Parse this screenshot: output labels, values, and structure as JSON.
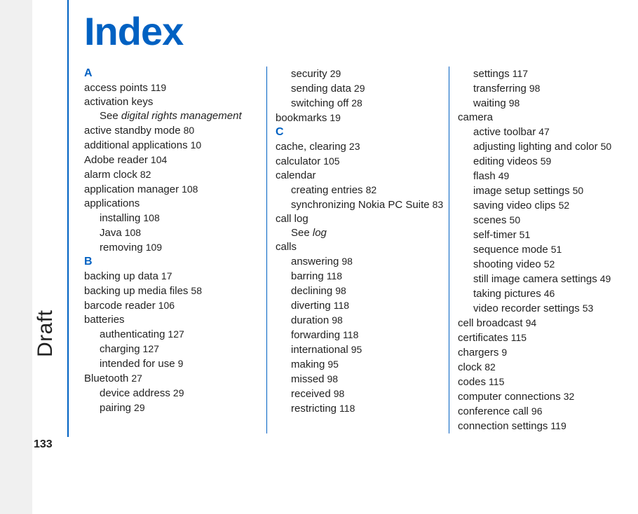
{
  "title": "Index",
  "draft_label": "Draft",
  "page_number": "133",
  "colors": {
    "accent": "#0061c2",
    "text": "#222222",
    "sidebar_bg": "#f0f0f0",
    "background": "#ffffff"
  },
  "typography": {
    "title_fontsize": 56,
    "body_fontsize": 15,
    "line_height": 20,
    "draft_fontsize": 30
  },
  "columns": [
    [
      {
        "type": "letter",
        "text": "A"
      },
      {
        "level": 0,
        "term": "access points",
        "page": "119"
      },
      {
        "level": 0,
        "term": "activation keys"
      },
      {
        "level": 1,
        "see": true,
        "prefix": "See ",
        "ref": "digital rights management"
      },
      {
        "level": 0,
        "term": "active standby mode",
        "page": "80"
      },
      {
        "level": 0,
        "term": "additional applications",
        "page": "10"
      },
      {
        "level": 0,
        "term": "Adobe reader",
        "page": "104"
      },
      {
        "level": 0,
        "term": "alarm clock",
        "page": "82"
      },
      {
        "level": 0,
        "term": "application manager",
        "page": "108"
      },
      {
        "level": 0,
        "term": "applications"
      },
      {
        "level": 1,
        "term": "installing",
        "page": "108"
      },
      {
        "level": 1,
        "term": "Java",
        "page": "108"
      },
      {
        "level": 1,
        "term": "removing",
        "page": "109"
      },
      {
        "type": "letter",
        "text": "B"
      },
      {
        "level": 0,
        "term": "backing up data",
        "page": "17"
      },
      {
        "level": 0,
        "term": "backing up media files",
        "page": "58"
      },
      {
        "level": 0,
        "term": "barcode reader",
        "page": "106"
      },
      {
        "level": 0,
        "term": "batteries"
      },
      {
        "level": 1,
        "term": "authenticating",
        "page": "127"
      },
      {
        "level": 1,
        "term": "charging",
        "page": "127"
      },
      {
        "level": 1,
        "term": "intended for use",
        "page": "9"
      },
      {
        "level": 0,
        "term": "Bluetooth",
        "page": "27"
      },
      {
        "level": 1,
        "term": "device address",
        "page": "29"
      },
      {
        "level": 1,
        "term": "pairing",
        "page": "29"
      }
    ],
    [
      {
        "level": 1,
        "term": "security",
        "page": "29"
      },
      {
        "level": 1,
        "term": "sending data",
        "page": "29"
      },
      {
        "level": 1,
        "term": "switching off",
        "page": "28"
      },
      {
        "level": 0,
        "term": "bookmarks",
        "page": "19"
      },
      {
        "type": "letter",
        "text": "C"
      },
      {
        "level": 0,
        "term": "cache, clearing",
        "page": "23"
      },
      {
        "level": 0,
        "term": "calculator",
        "page": "105"
      },
      {
        "level": 0,
        "term": "calendar"
      },
      {
        "level": 1,
        "term": "creating entries",
        "page": "82"
      },
      {
        "level": 1,
        "term": "synchronizing Nokia PC Suite",
        "page": "83"
      },
      {
        "level": 0,
        "term": "call log"
      },
      {
        "level": 1,
        "see": true,
        "prefix": "See ",
        "ref": "log"
      },
      {
        "level": 0,
        "term": "calls"
      },
      {
        "level": 1,
        "term": "answering",
        "page": "98"
      },
      {
        "level": 1,
        "term": "barring",
        "page": "118"
      },
      {
        "level": 1,
        "term": "declining",
        "page": "98"
      },
      {
        "level": 1,
        "term": "diverting",
        "page": "118"
      },
      {
        "level": 1,
        "term": "duration",
        "page": "98"
      },
      {
        "level": 1,
        "term": "forwarding",
        "page": "118"
      },
      {
        "level": 1,
        "term": "international",
        "page": "95"
      },
      {
        "level": 1,
        "term": "making",
        "page": "95"
      },
      {
        "level": 1,
        "term": "missed",
        "page": "98"
      },
      {
        "level": 1,
        "term": "received",
        "page": "98"
      },
      {
        "level": 1,
        "term": "restricting",
        "page": "118"
      }
    ],
    [
      {
        "level": 1,
        "term": "settings",
        "page": "117"
      },
      {
        "level": 1,
        "term": "transferring",
        "page": "98"
      },
      {
        "level": 1,
        "term": "waiting",
        "page": "98"
      },
      {
        "level": 0,
        "term": "camera"
      },
      {
        "level": 1,
        "term": "active toolbar",
        "page": "47"
      },
      {
        "level": 1,
        "term": "adjusting lighting and color",
        "page": "50"
      },
      {
        "level": 1,
        "term": "editing videos",
        "page": "59"
      },
      {
        "level": 1,
        "term": "flash",
        "page": "49"
      },
      {
        "level": 1,
        "term": "image setup settings",
        "page": "50"
      },
      {
        "level": 1,
        "term": "saving video clips",
        "page": "52"
      },
      {
        "level": 1,
        "term": "scenes",
        "page": "50"
      },
      {
        "level": 1,
        "term": "self-timer",
        "page": "51"
      },
      {
        "level": 1,
        "term": "sequence mode",
        "page": "51"
      },
      {
        "level": 1,
        "term": "shooting video",
        "page": "52"
      },
      {
        "level": 1,
        "term": "still image camera settings",
        "page": "49"
      },
      {
        "level": 1,
        "term": "taking pictures",
        "page": "46"
      },
      {
        "level": 1,
        "term": "video recorder settings",
        "page": "53"
      },
      {
        "level": 0,
        "term": "cell broadcast",
        "page": "94"
      },
      {
        "level": 0,
        "term": "certificates",
        "page": "115"
      },
      {
        "level": 0,
        "term": "chargers",
        "page": "9"
      },
      {
        "level": 0,
        "term": "clock",
        "page": "82"
      },
      {
        "level": 0,
        "term": "codes",
        "page": "115"
      },
      {
        "level": 0,
        "term": "computer connections",
        "page": "32"
      },
      {
        "level": 0,
        "term": "conference call",
        "page": "96"
      },
      {
        "level": 0,
        "term": "connection settings",
        "page": "119"
      }
    ]
  ]
}
